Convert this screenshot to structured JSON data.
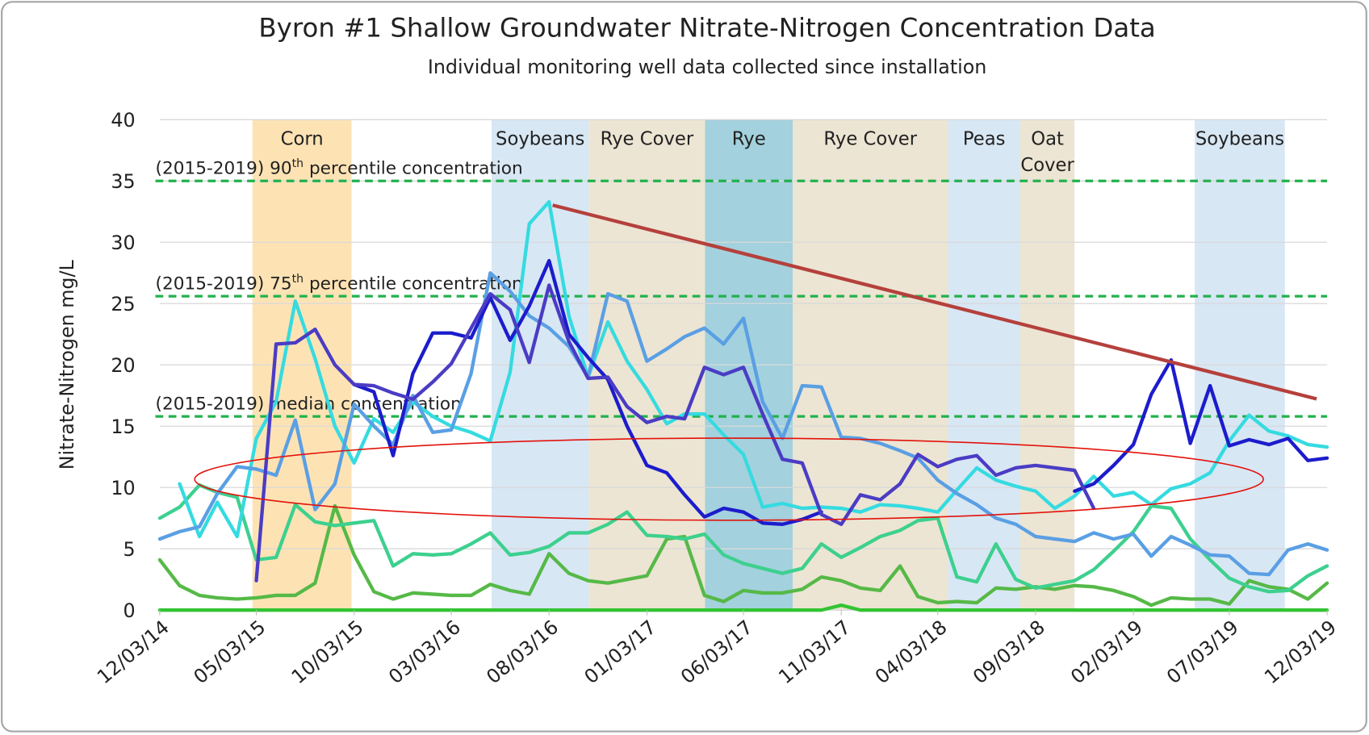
{
  "chart_data": {
    "type": "line",
    "title": "Byron #1 Shallow Groundwater Nitrate-Nitrogen Concentration Data",
    "subtitle": "Individual monitoring well data collected since installation",
    "y_label": "Nitrate-Nitrogen mg/L",
    "ylim": [
      0,
      40
    ],
    "yticks": [
      0,
      5,
      10,
      15,
      20,
      25,
      30,
      35,
      40
    ],
    "grid": true,
    "xlim": [
      "2014-12-03",
      "2019-12-03"
    ],
    "xticks": [
      {
        "value": "2014-12-03",
        "label": "12/03/14"
      },
      {
        "value": "2015-05-03",
        "label": "05/03/15"
      },
      {
        "value": "2015-10-03",
        "label": "10/03/15"
      },
      {
        "value": "2016-03-03",
        "label": "03/03/16"
      },
      {
        "value": "2016-08-03",
        "label": "08/03/16"
      },
      {
        "value": "2017-01-03",
        "label": "01/03/17"
      },
      {
        "value": "2017-06-03",
        "label": "06/03/17"
      },
      {
        "value": "2017-11-03",
        "label": "11/03/17"
      },
      {
        "value": "2018-04-03",
        "label": "04/03/18"
      },
      {
        "value": "2018-09-03",
        "label": "09/03/18"
      },
      {
        "value": "2019-02-03",
        "label": "02/03/19"
      },
      {
        "value": "2019-07-03",
        "label": "07/03/19"
      },
      {
        "value": "2019-12-03",
        "label": "12/03/19"
      }
    ],
    "bands": [
      {
        "label": [
          "Corn"
        ],
        "start": "2015-04-27",
        "end": "2015-09-29",
        "color": "#fde3b4"
      },
      {
        "label": [
          "Soybeans"
        ],
        "start": "2016-05-05",
        "end": "2016-10-04",
        "color": "#d8e7f4"
      },
      {
        "label": [
          "Rye Cover"
        ],
        "start": "2016-10-04",
        "end": "2017-04-04",
        "color": "#ece5d3"
      },
      {
        "label": [
          "Rye"
        ],
        "start": "2017-04-04",
        "end": "2017-08-19",
        "color": "#a3d1dd"
      },
      {
        "label": [
          "Rye Cover"
        ],
        "start": "2017-08-19",
        "end": "2018-04-19",
        "color": "#ece5d3"
      },
      {
        "label": [
          "Peas"
        ],
        "start": "2018-04-19",
        "end": "2018-08-10",
        "color": "#d8e7f4"
      },
      {
        "label": [
          "Oat",
          "Cover"
        ],
        "start": "2018-08-10",
        "end": "2018-11-03",
        "color": "#ece5d3"
      },
      {
        "label": [
          "Soybeans"
        ],
        "start": "2019-05-10",
        "end": "2019-09-28",
        "color": "#d8e7f4"
      }
    ],
    "reference_lines": [
      {
        "value": 35,
        "label": [
          "(2015-2019) 90",
          "th",
          " percentile concentration"
        ],
        "color": "#22b14c"
      },
      {
        "value": 25.6,
        "label": [
          "(2015-2019) 75",
          "th",
          " percentile concentration"
        ],
        "color": "#22b14c"
      },
      {
        "value": 15.8,
        "label": [
          "(2015-2019) median concentration"
        ],
        "color": "#22b14c"
      }
    ],
    "x": [
      "2014-12-03",
      "2015-01-03",
      "2015-02-03",
      "2015-03-03",
      "2015-04-03",
      "2015-05-03",
      "2015-06-03",
      "2015-07-03",
      "2015-08-03",
      "2015-09-03",
      "2015-10-03",
      "2015-11-03",
      "2015-12-03",
      "2016-01-03",
      "2016-02-03",
      "2016-03-03",
      "2016-04-03",
      "2016-05-03",
      "2016-06-03",
      "2016-07-03",
      "2016-08-03",
      "2016-09-03",
      "2016-10-03",
      "2016-11-03",
      "2016-12-03",
      "2017-01-03",
      "2017-02-03",
      "2017-03-03",
      "2017-04-03",
      "2017-05-03",
      "2017-06-03",
      "2017-07-03",
      "2017-08-03",
      "2017-09-03",
      "2017-10-03",
      "2017-11-03",
      "2017-12-03",
      "2018-01-03",
      "2018-02-03",
      "2018-03-03",
      "2018-04-03",
      "2018-05-03",
      "2018-06-03",
      "2018-07-03",
      "2018-08-03",
      "2018-09-03",
      "2018-10-03",
      "2018-11-03",
      "2018-12-03",
      "2019-01-03",
      "2019-02-03",
      "2019-03-03",
      "2019-04-03",
      "2019-05-03",
      "2019-06-03",
      "2019-07-03",
      "2019-08-03",
      "2019-09-03",
      "2019-10-03",
      "2019-11-03",
      "2019-12-03"
    ],
    "series": [
      {
        "color": "#33c433",
        "values": [
          0,
          0,
          0,
          0,
          0,
          0,
          0,
          0,
          0,
          0,
          0,
          0,
          0,
          0,
          0,
          0,
          0,
          0,
          0,
          0,
          0,
          0,
          0,
          0,
          0,
          0,
          0,
          0,
          0,
          0,
          0,
          0,
          0,
          0,
          0,
          0.4,
          0,
          0,
          0,
          0,
          0,
          0,
          0,
          0,
          0,
          0,
          0,
          0,
          0,
          0,
          0,
          0,
          0,
          0,
          0,
          0,
          0,
          0,
          0,
          0,
          0
        ]
      },
      {
        "color": "#56b947",
        "values": [
          4.1,
          2.0,
          1.2,
          1.0,
          0.9,
          1.0,
          1.2,
          1.2,
          2.2,
          8.5,
          4.5,
          1.5,
          0.9,
          1.4,
          1.3,
          1.2,
          1.2,
          2.1,
          1.6,
          1.3,
          4.6,
          3.0,
          2.4,
          2.2,
          2.5,
          2.8,
          5.8,
          6.0,
          1.2,
          0.7,
          1.6,
          1.4,
          1.4,
          1.7,
          2.7,
          2.4,
          1.8,
          1.6,
          3.6,
          1.1,
          0.6,
          0.7,
          0.6,
          1.8,
          1.7,
          1.9,
          1.7,
          2.0,
          1.9,
          1.6,
          1.1,
          0.4,
          1.0,
          0.9,
          0.9,
          0.5,
          2.4,
          1.9,
          1.7,
          0.9,
          2.2
        ]
      },
      {
        "color": "#3dd08f",
        "values": [
          7.5,
          8.4,
          10.2,
          9.6,
          9.2,
          4.1,
          4.3,
          8.6,
          7.2,
          6.9,
          7.1,
          7.3,
          3.6,
          4.6,
          4.5,
          4.6,
          5.4,
          6.3,
          4.5,
          4.7,
          5.2,
          6.3,
          6.3,
          7.0,
          8.0,
          6.1,
          6.0,
          5.8,
          6.2,
          4.5,
          3.8,
          3.4,
          3.0,
          3.4,
          5.4,
          4.3,
          5.1,
          6.0,
          6.5,
          7.3,
          7.5,
          2.7,
          2.3,
          5.4,
          2.5,
          1.8,
          2.1,
          2.4,
          3.3,
          4.8,
          6.4,
          8.5,
          8.3,
          5.8,
          4.1,
          2.6,
          1.9,
          1.5,
          1.6,
          2.8,
          3.6
        ]
      },
      {
        "color": "#35dbe0",
        "values": [
          null,
          10.3,
          6.0,
          8.8,
          6.0,
          14.0,
          17.0,
          25.2,
          20.5,
          15.0,
          12.0,
          15.6,
          14.5,
          17.0,
          15.8,
          15.0,
          14.5,
          13.8,
          19.4,
          31.5,
          33.3,
          24.0,
          19.0,
          23.5,
          20.3,
          18.0,
          15.2,
          16.0,
          16.0,
          14.3,
          12.7,
          8.4,
          8.7,
          8.3,
          8.4,
          8.3,
          8.0,
          8.6,
          8.5,
          8.3,
          8.0,
          9.8,
          11.6,
          10.6,
          10.1,
          9.7,
          8.3,
          9.3,
          10.9,
          9.3,
          9.6,
          8.6,
          9.9,
          10.3,
          11.2,
          13.8,
          15.9,
          14.6,
          14.2,
          13.5,
          13.3
        ]
      },
      {
        "color": "#5a9fe4",
        "values": [
          5.8,
          6.4,
          6.8,
          9.5,
          11.7,
          11.5,
          11.0,
          15.5,
          8.2,
          10.3,
          16.8,
          15.0,
          13.5,
          17.5,
          14.5,
          14.7,
          19.3,
          27.5,
          26.0,
          24.0,
          23.0,
          21.5,
          19.0,
          25.8,
          25.2,
          20.3,
          21.3,
          22.3,
          23.0,
          21.7,
          23.8,
          17.0,
          14.0,
          18.3,
          18.2,
          14.1,
          14.0,
          13.6,
          13.0,
          12.4,
          10.6,
          9.5,
          8.6,
          7.5,
          7.0,
          6.0,
          5.8,
          5.6,
          6.3,
          5.8,
          6.2,
          4.4,
          6.0,
          5.3,
          4.5,
          4.4,
          3.0,
          2.9,
          4.9,
          5.4,
          4.9
        ]
      },
      {
        "color": "#1c1ccc",
        "values": [
          null,
          null,
          null,
          null,
          null,
          null,
          null,
          null,
          null,
          null,
          18.4,
          17.8,
          12.6,
          19.3,
          22.6,
          22.6,
          22.2,
          25.5,
          22.0,
          24.8,
          28.5,
          22.5,
          20.6,
          18.8,
          15.0,
          11.8,
          11.2,
          9.4,
          7.6,
          8.3,
          8.0,
          7.1,
          7.0,
          7.4,
          8.0,
          null,
          null,
          null,
          null,
          null,
          null,
          null,
          null,
          null,
          null,
          null,
          null,
          9.7,
          10.3,
          11.8,
          13.5,
          17.6,
          20.4,
          13.6,
          18.3,
          13.4,
          13.9,
          13.5,
          14.0,
          12.2,
          12.4
        ]
      },
      {
        "color": "#4b3cc4",
        "values": [
          null,
          null,
          null,
          null,
          null,
          2.4,
          21.7,
          21.8,
          22.9,
          20.0,
          18.4,
          18.3,
          17.7,
          17.2,
          18.6,
          20.1,
          23.0,
          25.8,
          24.5,
          20.2,
          26.5,
          21.9,
          18.9,
          19.0,
          16.6,
          15.3,
          15.8,
          15.6,
          19.8,
          19.2,
          19.8,
          16.0,
          12.3,
          12.0,
          7.8,
          7.0,
          9.4,
          9.0,
          10.3,
          12.7,
          11.7,
          12.3,
          12.6,
          11.0,
          11.6,
          11.8,
          11.6,
          11.4,
          8.3,
          null,
          null,
          null,
          null,
          null,
          null,
          null,
          null,
          null,
          null,
          null,
          null
        ]
      }
    ]
  }
}
